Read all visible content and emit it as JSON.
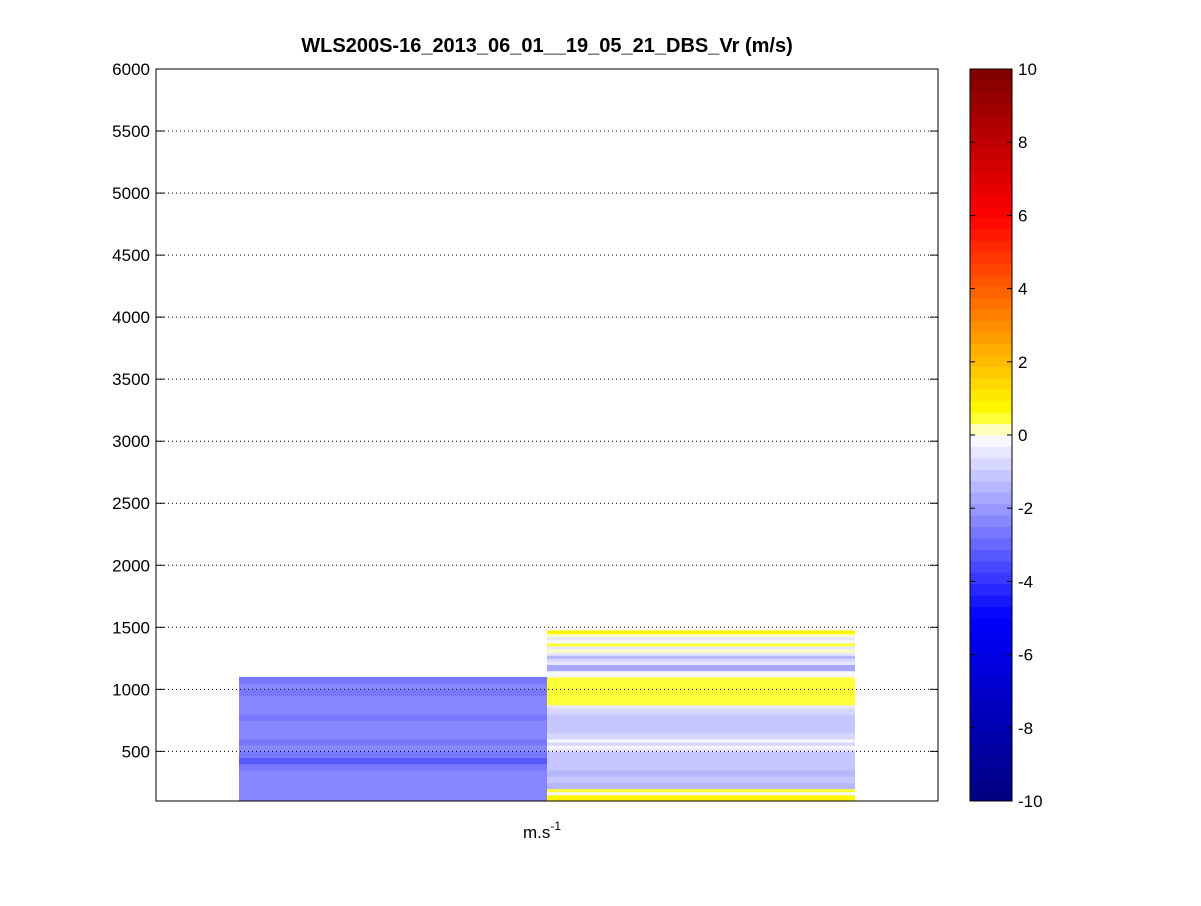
{
  "chart_data": {
    "type": "heatmap",
    "title": "WLS200S-16_2013_06_01__19_05_21_DBS_Vr (m/s)",
    "xlabel_base": "m.s",
    "xlabel_exponent": "-1",
    "ylabel": "",
    "ylim": [
      100,
      6000
    ],
    "yticks": [
      500,
      1000,
      1500,
      2000,
      2500,
      3000,
      3500,
      4000,
      4500,
      5000,
      5500,
      6000
    ],
    "grid": "horizontal-dotted",
    "colorbar": {
      "range": [
        -10,
        10
      ],
      "ticks": [
        -10,
        -8,
        -6,
        -4,
        -2,
        0,
        2,
        4,
        6,
        8,
        10
      ],
      "levels": 64,
      "colors": [
        "#00007f",
        "#0000ff",
        "#ffffff",
        "#ffff00",
        "#ff0000",
        "#7f0000"
      ],
      "stops": [
        -10,
        -5,
        0,
        0.6,
        6,
        10
      ]
    },
    "columns": [
      {
        "name": "",
        "bands": [
          {
            "from": 100,
            "to": 150,
            "value": -2.4
          },
          {
            "from": 150,
            "to": 200,
            "value": -2.5
          },
          {
            "from": 200,
            "to": 250,
            "value": -2.4
          },
          {
            "from": 250,
            "to": 300,
            "value": -2.5
          },
          {
            "from": 300,
            "to": 350,
            "value": -2.4
          },
          {
            "from": 350,
            "to": 400,
            "value": -2.6
          },
          {
            "from": 400,
            "to": 450,
            "value": -3.2
          },
          {
            "from": 450,
            "to": 500,
            "value": -2.7
          },
          {
            "from": 500,
            "to": 550,
            "value": -2.5
          },
          {
            "from": 550,
            "to": 600,
            "value": -2.6
          },
          {
            "from": 600,
            "to": 650,
            "value": -2.4
          },
          {
            "from": 650,
            "to": 700,
            "value": -2.5
          },
          {
            "from": 700,
            "to": 750,
            "value": -2.4
          },
          {
            "from": 750,
            "to": 800,
            "value": -2.6
          },
          {
            "from": 800,
            "to": 850,
            "value": -2.5
          },
          {
            "from": 850,
            "to": 900,
            "value": -2.4
          },
          {
            "from": 900,
            "to": 950,
            "value": -2.5
          },
          {
            "from": 950,
            "to": 1000,
            "value": -2.7
          },
          {
            "from": 1000,
            "to": 1050,
            "value": -2.5
          },
          {
            "from": 1050,
            "to": 1100,
            "value": -2.6
          }
        ]
      },
      {
        "name": "",
        "bands": [
          {
            "from": 100,
            "to": 150,
            "value": 0.9
          },
          {
            "from": 150,
            "to": 175,
            "value": -0.3
          },
          {
            "from": 175,
            "to": 200,
            "value": 0.4
          },
          {
            "from": 200,
            "to": 250,
            "value": -1.4
          },
          {
            "from": 250,
            "to": 300,
            "value": -1.1
          },
          {
            "from": 300,
            "to": 350,
            "value": -1.3
          },
          {
            "from": 350,
            "to": 400,
            "value": -1.1
          },
          {
            "from": 400,
            "to": 450,
            "value": -1.2
          },
          {
            "from": 450,
            "to": 500,
            "value": -1.0
          },
          {
            "from": 500,
            "to": 525,
            "value": -0.6
          },
          {
            "from": 525,
            "to": 550,
            "value": -0.1
          },
          {
            "from": 550,
            "to": 575,
            "value": -0.7
          },
          {
            "from": 575,
            "to": 600,
            "value": -0.2
          },
          {
            "from": 600,
            "to": 650,
            "value": -0.9
          },
          {
            "from": 650,
            "to": 700,
            "value": -1.1
          },
          {
            "from": 700,
            "to": 750,
            "value": -1.0
          },
          {
            "from": 750,
            "to": 800,
            "value": -1.2
          },
          {
            "from": 800,
            "to": 850,
            "value": -0.8
          },
          {
            "from": 850,
            "to": 875,
            "value": -0.5
          },
          {
            "from": 875,
            "to": 1100,
            "value": 0.4
          },
          {
            "from": 1100,
            "to": 1150,
            "value": -0.1
          },
          {
            "from": 1150,
            "to": 1200,
            "value": -1.8
          },
          {
            "from": 1200,
            "to": 1225,
            "value": -0.6
          },
          {
            "from": 1225,
            "to": 1250,
            "value": -0.9
          },
          {
            "from": 1250,
            "to": 1275,
            "value": -1.4
          },
          {
            "from": 1275,
            "to": 1300,
            "value": -0.5
          },
          {
            "from": 1300,
            "to": 1325,
            "value": 0.3
          },
          {
            "from": 1325,
            "to": 1350,
            "value": -0.4
          },
          {
            "from": 1350,
            "to": 1375,
            "value": 0.5
          },
          {
            "from": 1375,
            "to": 1400,
            "value": -0.2
          },
          {
            "from": 1400,
            "to": 1425,
            "value": -0.5
          },
          {
            "from": 1425,
            "to": 1450,
            "value": 0.3
          },
          {
            "from": 1450,
            "to": 1475,
            "value": 0.9
          }
        ]
      }
    ]
  }
}
